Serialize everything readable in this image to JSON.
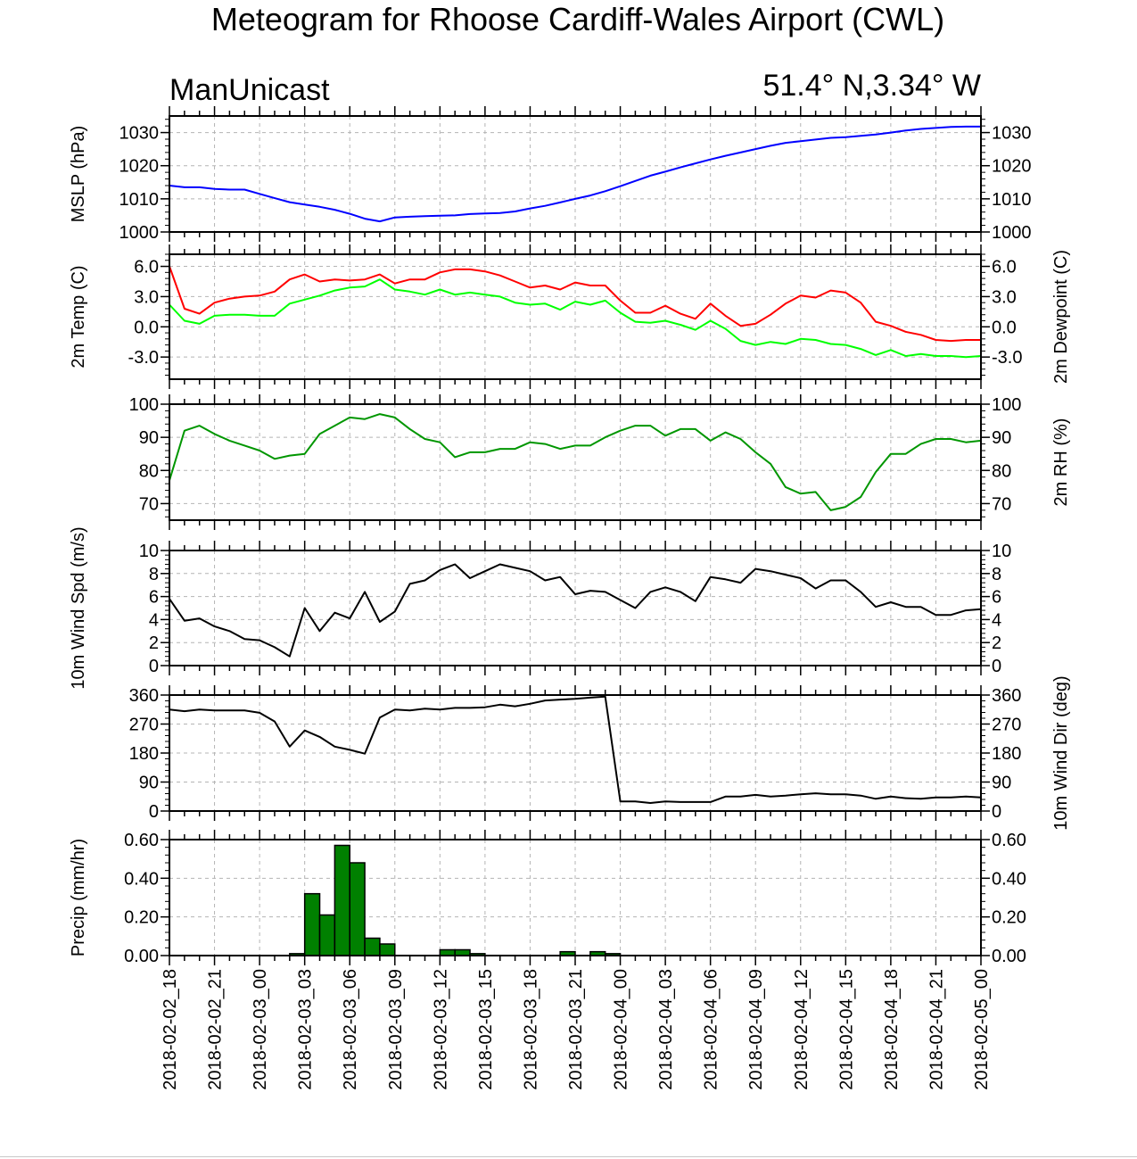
{
  "title": "Meteogram for Rhoose Cardiff-Wales Airport (CWL)",
  "model": "ManUnicast",
  "location": "51.4° N,3.34° W",
  "colors": {
    "mslp": "#0000ff",
    "temp": "#ff0000",
    "dewpoint": "#00ff00",
    "rh": "#009600",
    "wind": "#000000",
    "precip": "#008000",
    "grid": "#b4b4b4"
  },
  "x_ticks": [
    "2018-02-02_18",
    "2018-02-02_21",
    "2018-02-03_00",
    "2018-02-03_03",
    "2018-02-03_06",
    "2018-02-03_09",
    "2018-02-03_12",
    "2018-02-03_15",
    "2018-02-03_18",
    "2018-02-03_21",
    "2018-02-04_00",
    "2018-02-04_03",
    "2018-02-04_06",
    "2018-02-04_09",
    "2018-02-04_12",
    "2018-02-04_15",
    "2018-02-04_18",
    "2018-02-04_21",
    "2018-02-05_00"
  ],
  "chart_data": [
    {
      "id": "mslp",
      "type": "line",
      "ylabel": "MSLP (hPa)",
      "ylabel_right": "",
      "ylim": [
        1000,
        1035
      ],
      "yticks": [
        1000,
        1010,
        1020,
        1030
      ],
      "ytick_labels": [
        "1000",
        "1010",
        "1020",
        "1030"
      ],
      "hours": [
        0,
        1,
        2,
        3,
        4,
        5,
        6,
        7,
        8,
        9,
        10,
        11,
        12,
        13,
        14,
        15,
        16,
        17,
        18,
        19,
        20,
        21,
        22,
        23,
        24,
        25,
        26,
        27,
        28,
        29,
        30,
        31,
        32,
        33,
        34,
        35,
        36,
        37,
        38,
        39,
        40,
        41,
        42,
        43,
        44,
        45,
        46,
        47,
        48,
        49,
        50,
        51,
        52,
        53,
        54
      ],
      "series": [
        {
          "name": "",
          "color_key": "mslp",
          "values": [
            1014,
            1013.5,
            1013.5,
            1013,
            1012.8,
            1012.8,
            1011.5,
            1010.2,
            1009,
            1008.3,
            1007.6,
            1006.7,
            1005.5,
            1004,
            1003.2,
            1004.4,
            1004.6,
            1004.8,
            1004.9,
            1005,
            1005.4,
            1005.6,
            1005.7,
            1006.2,
            1007.1,
            1007.9,
            1008.9,
            1010,
            1011,
            1012.3,
            1013.8,
            1015.4,
            1017,
            1018.2,
            1019.5,
            1020.7,
            1021.9,
            1023,
            1024,
            1025,
            1026,
            1026.9,
            1027.4,
            1027.9,
            1028.4,
            1028.6,
            1029,
            1029.4,
            1030,
            1030.6,
            1031.1,
            1031.4,
            1031.7,
            1031.8,
            1031.8
          ]
        }
      ]
    },
    {
      "id": "temp",
      "type": "line",
      "ylabel": "2m Temp (C)",
      "ylabel_right": "2m Dewpoint (C)",
      "ylim": [
        -5.2,
        7.2
      ],
      "yticks": [
        -3,
        0,
        3,
        6
      ],
      "ytick_labels": [
        "-3.0",
        "0.0",
        "3.0",
        "6.0"
      ],
      "hours": [
        0,
        1,
        2,
        3,
        4,
        5,
        6,
        7,
        8,
        9,
        10,
        11,
        12,
        13,
        14,
        15,
        16,
        17,
        18,
        19,
        20,
        21,
        22,
        23,
        24,
        25,
        26,
        27,
        28,
        29,
        30,
        31,
        32,
        33,
        34,
        35,
        36,
        37,
        38,
        39,
        40,
        41,
        42,
        43,
        44,
        45,
        46,
        47,
        48,
        49,
        50,
        51,
        52,
        53,
        54
      ],
      "series": [
        {
          "name": "",
          "color_key": "temp",
          "values": [
            6.0,
            1.8,
            1.3,
            2.4,
            2.8,
            3.0,
            3.1,
            3.5,
            4.7,
            5.2,
            4.5,
            4.7,
            4.6,
            4.7,
            5.2,
            4.3,
            4.7,
            4.7,
            5.4,
            5.7,
            5.7,
            5.5,
            5.1,
            4.5,
            3.9,
            4.1,
            3.7,
            4.4,
            4.1,
            4.1,
            2.6,
            1.4,
            1.4,
            2.1,
            1.3,
            0.8,
            2.3,
            1.1,
            0.1,
            0.3,
            1.2,
            2.3,
            3.1,
            2.9,
            3.6,
            3.4,
            2.4,
            0.5,
            0.1,
            -0.5,
            -0.8,
            -1.3,
            -1.4,
            -1.3,
            -1.3
          ]
        },
        {
          "name": "",
          "color_key": "dewpoint",
          "values": [
            2.2,
            0.6,
            0.3,
            1.1,
            1.2,
            1.2,
            1.1,
            1.1,
            2.3,
            2.7,
            3.1,
            3.6,
            3.9,
            4.0,
            4.7,
            3.7,
            3.5,
            3.2,
            3.7,
            3.2,
            3.4,
            3.2,
            3.0,
            2.4,
            2.2,
            2.3,
            1.7,
            2.5,
            2.2,
            2.6,
            1.4,
            0.5,
            0.4,
            0.6,
            0.2,
            -0.3,
            0.6,
            -0.2,
            -1.4,
            -1.8,
            -1.5,
            -1.7,
            -1.2,
            -1.3,
            -1.7,
            -1.8,
            -2.2,
            -2.8,
            -2.3,
            -2.9,
            -2.7,
            -2.9,
            -2.9,
            -3.0,
            -2.9
          ]
        }
      ]
    },
    {
      "id": "rh",
      "type": "line",
      "ylabel": "",
      "ylabel_right": "2m RH (%)",
      "ylim": [
        65,
        100
      ],
      "yticks": [
        70,
        80,
        90,
        100
      ],
      "ytick_labels": [
        "70",
        "80",
        "90",
        "100"
      ],
      "hours": [
        0,
        1,
        2,
        3,
        4,
        5,
        6,
        7,
        8,
        9,
        10,
        11,
        12,
        13,
        14,
        15,
        16,
        17,
        18,
        19,
        20,
        21,
        22,
        23,
        24,
        25,
        26,
        27,
        28,
        29,
        30,
        31,
        32,
        33,
        34,
        35,
        36,
        37,
        38,
        39,
        40,
        41,
        42,
        43,
        44,
        45,
        46,
        47,
        48,
        49,
        50,
        51,
        52,
        53,
        54
      ],
      "series": [
        {
          "name": "",
          "color_key": "rh",
          "values": [
            77,
            92,
            93.5,
            91,
            89,
            87.5,
            86,
            83.5,
            84.5,
            85,
            91,
            93.5,
            96,
            95.5,
            97,
            96,
            92.5,
            89.5,
            88.5,
            84,
            85.5,
            85.5,
            86.5,
            86.5,
            88.5,
            88,
            86.5,
            87.5,
            87.5,
            90,
            92,
            93.5,
            93.5,
            90.5,
            92.5,
            92.5,
            89,
            91.5,
            89.5,
            85.5,
            82,
            75,
            73,
            73.5,
            68,
            69,
            72,
            79.5,
            85,
            85,
            88,
            89.5,
            89.5,
            88.5,
            89
          ]
        }
      ]
    },
    {
      "id": "wind_speed",
      "type": "line",
      "ylabel": "10m Wind Spd (m/s)",
      "ylabel_right": "",
      "ylim": [
        0,
        10
      ],
      "yticks": [
        0,
        2,
        4,
        6,
        8,
        10
      ],
      "ytick_labels": [
        "0",
        "2",
        "4",
        "6",
        "8",
        "10"
      ],
      "hours": [
        0,
        1,
        2,
        3,
        4,
        5,
        6,
        7,
        8,
        9,
        10,
        11,
        12,
        13,
        14,
        15,
        16,
        17,
        18,
        19,
        20,
        21,
        22,
        23,
        24,
        25,
        26,
        27,
        28,
        29,
        30,
        31,
        32,
        33,
        34,
        35,
        36,
        37,
        38,
        39,
        40,
        41,
        42,
        43,
        44,
        45,
        46,
        47,
        48,
        49,
        50,
        51,
        52,
        53,
        54
      ],
      "series": [
        {
          "name": "",
          "color_key": "wind",
          "values": [
            5.8,
            3.9,
            4.1,
            3.4,
            3.0,
            2.3,
            2.2,
            1.6,
            0.8,
            5.0,
            3.0,
            4.6,
            4.1,
            6.4,
            3.8,
            4.7,
            7.1,
            7.4,
            8.3,
            8.8,
            7.6,
            8.2,
            8.8,
            8.5,
            8.2,
            7.4,
            7.7,
            6.2,
            6.5,
            6.4,
            5.7,
            5.0,
            6.4,
            6.8,
            6.4,
            5.6,
            7.7,
            7.5,
            7.2,
            8.4,
            8.2,
            7.9,
            7.6,
            6.7,
            7.4,
            7.4,
            6.4,
            5.1,
            5.5,
            5.1,
            5.1,
            4.4,
            4.4,
            4.8,
            4.9
          ]
        }
      ]
    },
    {
      "id": "wind_dir",
      "type": "line",
      "ylabel": "",
      "ylabel_right": "10m Wind Dir (deg)",
      "ylim": [
        0,
        360
      ],
      "yticks": [
        0,
        90,
        180,
        270,
        360
      ],
      "ytick_labels": [
        "0",
        "90",
        "180",
        "270",
        "360"
      ],
      "hours": [
        0,
        1,
        2,
        3,
        4,
        5,
        6,
        7,
        8,
        9,
        10,
        11,
        12,
        13,
        14,
        15,
        16,
        17,
        18,
        19,
        20,
        21,
        22,
        23,
        24,
        25,
        26,
        27,
        28,
        29,
        30,
        31,
        32,
        33,
        34,
        35,
        36,
        37,
        38,
        39,
        40,
        41,
        42,
        43,
        44,
        45,
        46,
        47,
        48,
        49,
        50,
        51,
        52,
        53,
        54
      ],
      "series": [
        {
          "name": "",
          "color_key": "wind",
          "values": [
            315,
            310,
            315,
            312,
            312,
            312,
            305,
            278,
            200,
            250,
            230,
            200,
            190,
            178,
            290,
            315,
            312,
            318,
            315,
            320,
            320,
            322,
            330,
            325,
            333,
            343,
            346,
            348,
            352,
            355,
            30,
            30,
            25,
            30,
            28,
            28,
            28,
            45,
            45,
            50,
            45,
            48,
            52,
            55,
            52,
            52,
            48,
            38,
            45,
            40,
            38,
            42,
            42,
            45,
            42
          ]
        }
      ]
    },
    {
      "id": "precip",
      "type": "bar",
      "ylabel": "Precip (mm/hr)",
      "ylabel_right": "",
      "ylim": [
        0,
        0.6
      ],
      "yticks": [
        0,
        0.2,
        0.4,
        0.6
      ],
      "ytick_labels": [
        "0.00",
        "0.20",
        "0.40",
        "0.60"
      ],
      "bar_start_hours": [
        8,
        9,
        10,
        11,
        12,
        13,
        14,
        18,
        19,
        20,
        26,
        28,
        29
      ],
      "series": [
        {
          "name": "",
          "color_key": "precip",
          "values": [
            0.01,
            0.32,
            0.21,
            0.57,
            0.48,
            0.09,
            0.06,
            0.03,
            0.03,
            0.01,
            0.02,
            0.02,
            0.01
          ]
        }
      ]
    }
  ]
}
